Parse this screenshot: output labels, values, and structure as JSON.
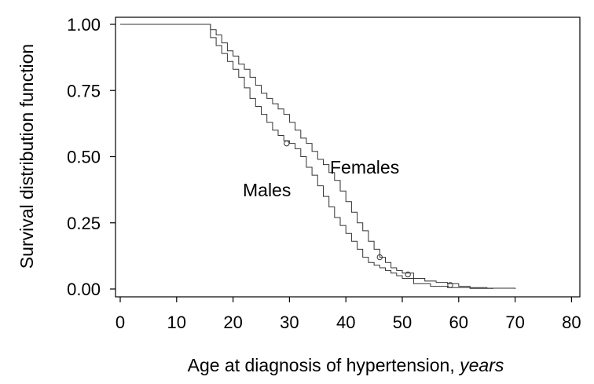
{
  "chart_data": {
    "type": "line",
    "title": "",
    "xlabel": "Age at diagnosis of hypertension, ",
    "xlabel_units": "years",
    "ylabel": "Survival distribution function",
    "xlim": [
      -1,
      71
    ],
    "ylim": [
      -0.02,
      1.02
    ],
    "x_ticks": [
      0,
      10,
      20,
      30,
      40,
      50,
      60,
      70,
      80
    ],
    "x_tick_labels": [
      "0",
      "10",
      "20",
      "30",
      "40",
      "50",
      "60",
      "70",
      "80"
    ],
    "y_ticks": [
      0.0,
      0.25,
      0.5,
      0.75,
      1.0
    ],
    "y_tick_labels": [
      "0.00",
      "0.25",
      "0.50",
      "0.75",
      "1.00"
    ],
    "grid": false,
    "legend": "none (series labelled directly on plot)",
    "series": [
      {
        "name": "Females",
        "color": "#333333",
        "x": [
          0,
          14,
          16,
          17,
          18,
          19,
          20,
          21,
          22,
          23,
          24,
          25,
          26,
          27,
          28,
          29,
          30,
          31,
          32,
          33,
          34,
          35,
          36,
          37,
          38,
          39,
          40,
          41,
          42,
          43,
          44,
          45,
          46,
          47,
          48,
          49,
          50,
          52,
          54,
          56,
          58,
          60,
          62,
          65,
          70
        ],
        "y": [
          1.0,
          1.0,
          0.98,
          0.96,
          0.93,
          0.9,
          0.88,
          0.85,
          0.83,
          0.8,
          0.77,
          0.74,
          0.72,
          0.7,
          0.68,
          0.66,
          0.63,
          0.6,
          0.57,
          0.55,
          0.52,
          0.49,
          0.47,
          0.44,
          0.41,
          0.37,
          0.33,
          0.29,
          0.25,
          0.22,
          0.18,
          0.15,
          0.12,
          0.1,
          0.08,
          0.07,
          0.06,
          0.04,
          0.03,
          0.025,
          0.02,
          0.01,
          0.005,
          0.003,
          0.0
        ],
        "censored": [
          [
            46,
            0.12
          ],
          [
            51,
            0.055
          ],
          [
            58.5,
            0.015
          ]
        ]
      },
      {
        "name": "Males",
        "color": "#333333",
        "x": [
          0,
          15,
          16,
          17,
          18,
          19,
          20,
          21,
          22,
          23,
          24,
          25,
          26,
          27,
          28,
          29,
          30,
          31,
          32,
          33,
          34,
          35,
          36,
          37,
          38,
          39,
          40,
          41,
          42,
          43,
          44,
          45,
          46,
          47,
          48,
          49,
          50,
          52,
          55,
          58,
          62,
          66
        ],
        "y": [
          1.0,
          1.0,
          0.95,
          0.92,
          0.89,
          0.86,
          0.83,
          0.8,
          0.76,
          0.72,
          0.69,
          0.66,
          0.63,
          0.6,
          0.58,
          0.56,
          0.55,
          0.53,
          0.5,
          0.46,
          0.43,
          0.39,
          0.35,
          0.31,
          0.27,
          0.24,
          0.21,
          0.18,
          0.15,
          0.12,
          0.1,
          0.09,
          0.08,
          0.07,
          0.06,
          0.05,
          0.04,
          0.02,
          0.01,
          0.005,
          0.002,
          0.0
        ],
        "censored": [
          [
            29.5,
            0.55
          ]
        ]
      }
    ]
  }
}
